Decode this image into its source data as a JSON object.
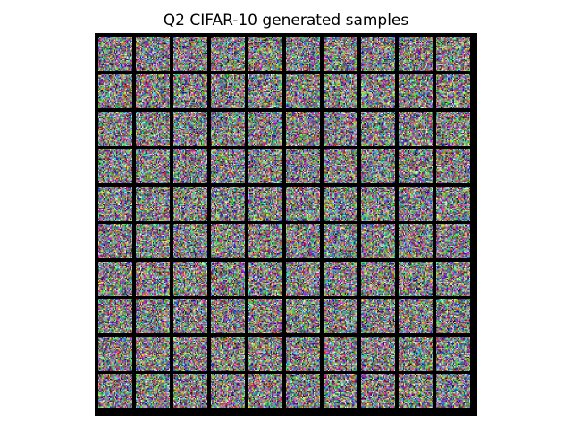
{
  "figure": {
    "title": "Q2 CIFAR-10 generated samples"
  },
  "grid": {
    "rows": 10,
    "cols": 10,
    "tile_pixels": 32,
    "content": "random-color noise per sample"
  }
}
